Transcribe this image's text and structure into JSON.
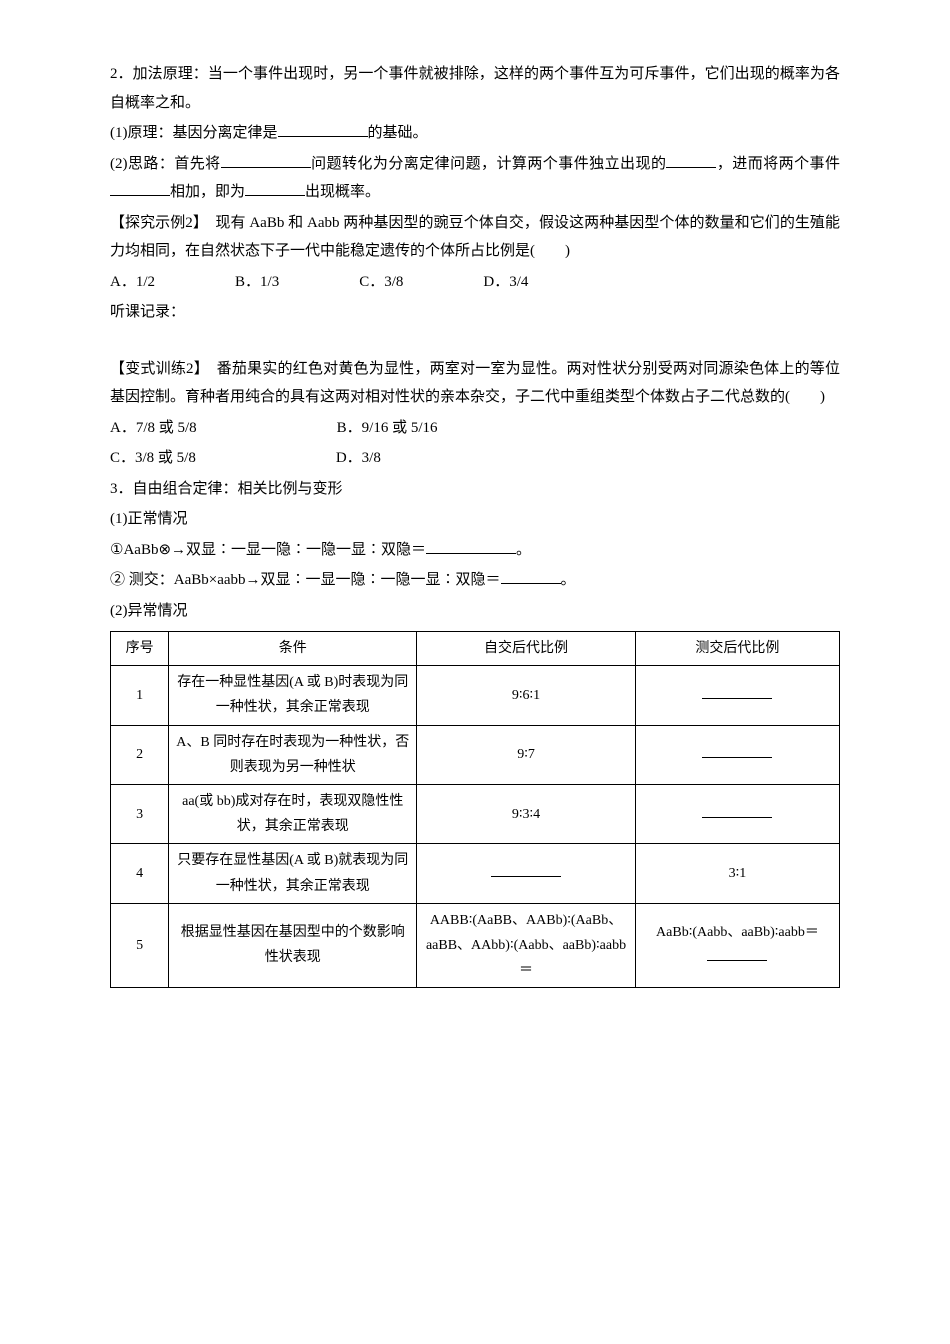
{
  "p1": "2．加法原理：当一个事件出现时，另一个事件就被排除，这样的两个事件互为可斥事件，它们出现的概率为各自概率之和。",
  "p2a": "(1)原理：基因分离定律是",
  "p2b": "的基础。",
  "p3a": "(2)思路：首先将",
  "p3b": "问题转化为分离定律问题，计算两个事件独立出现的",
  "p3c": "，进而将两个事件",
  "p3d": "相加，即为",
  "p3e": "出现概率。",
  "ex2a": "【探究示例2】　现有 AaBb 和 Aabb 两种基因型的豌豆个体自交，假设这两种基因型个体的数量和它们的生殖能力均相同，在自然状态下子一代中能稳定遗传的个体所占比例是(　　)",
  "optA": "A．1/2",
  "optB": "B．1/3",
  "optC": "C．3/8",
  "optD": "D．3/4",
  "listen": "听课记录：",
  "var2": "【变式训练2】　番茄果实的红色对黄色为显性，两室对一室为显性。两对性状分别受两对同源染色体上的等位基因控制。育种者用纯合的具有这两对相对性状的亲本杂交，子二代中重组类型个体数占子二代总数的(　　)",
  "voptA": "A．7/8 或 5/8",
  "voptB": "B．9/16 或 5/16",
  "voptC": "C．3/8 或 5/8",
  "voptD": "D．3/8",
  "p4": "3．自由组合定律：相关比例与变形",
  "p5": "(1)正常情况",
  "p6a": "①AaBb⊗→双显∶一显一隐∶一隐一显∶双隐＝",
  "p6b": "。",
  "p7a": "② 测交：AaBb×aabb→双显∶一显一隐∶一隐一显∶双隐＝",
  "p7b": "。",
  "p8": "(2)异常情况",
  "table": {
    "headers": [
      "序号",
      "条件",
      "自交后代比例",
      "测交后代比例"
    ],
    "rows": [
      {
        "num": "1",
        "cond": "存在一种显性基因(A 或 B)时表现为同一种性状，其余正常表现",
        "self": "9∶6∶1",
        "test": "__blank__"
      },
      {
        "num": "2",
        "cond": "A、B 同时存在时表现为一种性状，否则表现为另一种性状",
        "self": "9∶7",
        "test": "__blank__"
      },
      {
        "num": "3",
        "cond": "aa(或 bb)成对存在时，表现双隐性性状，其余正常表现",
        "self": "9∶3∶4",
        "test": "__blank__"
      },
      {
        "num": "4",
        "cond": "只要存在显性基因(A 或 B)就表现为同一种性状，其余正常表现",
        "self": "__blank__",
        "test": "3∶1"
      },
      {
        "num": "5",
        "cond": "根据显性基因在基因型中的个数影响性状表现",
        "self": "AABB∶(AaBB、AABb)∶(AaBb、aaBB、AAbb)∶(Aabb、aaBb)∶aabb＝",
        "test": "AaBb∶(Aabb、aaBb)∶aabb＝__blank__"
      }
    ]
  }
}
